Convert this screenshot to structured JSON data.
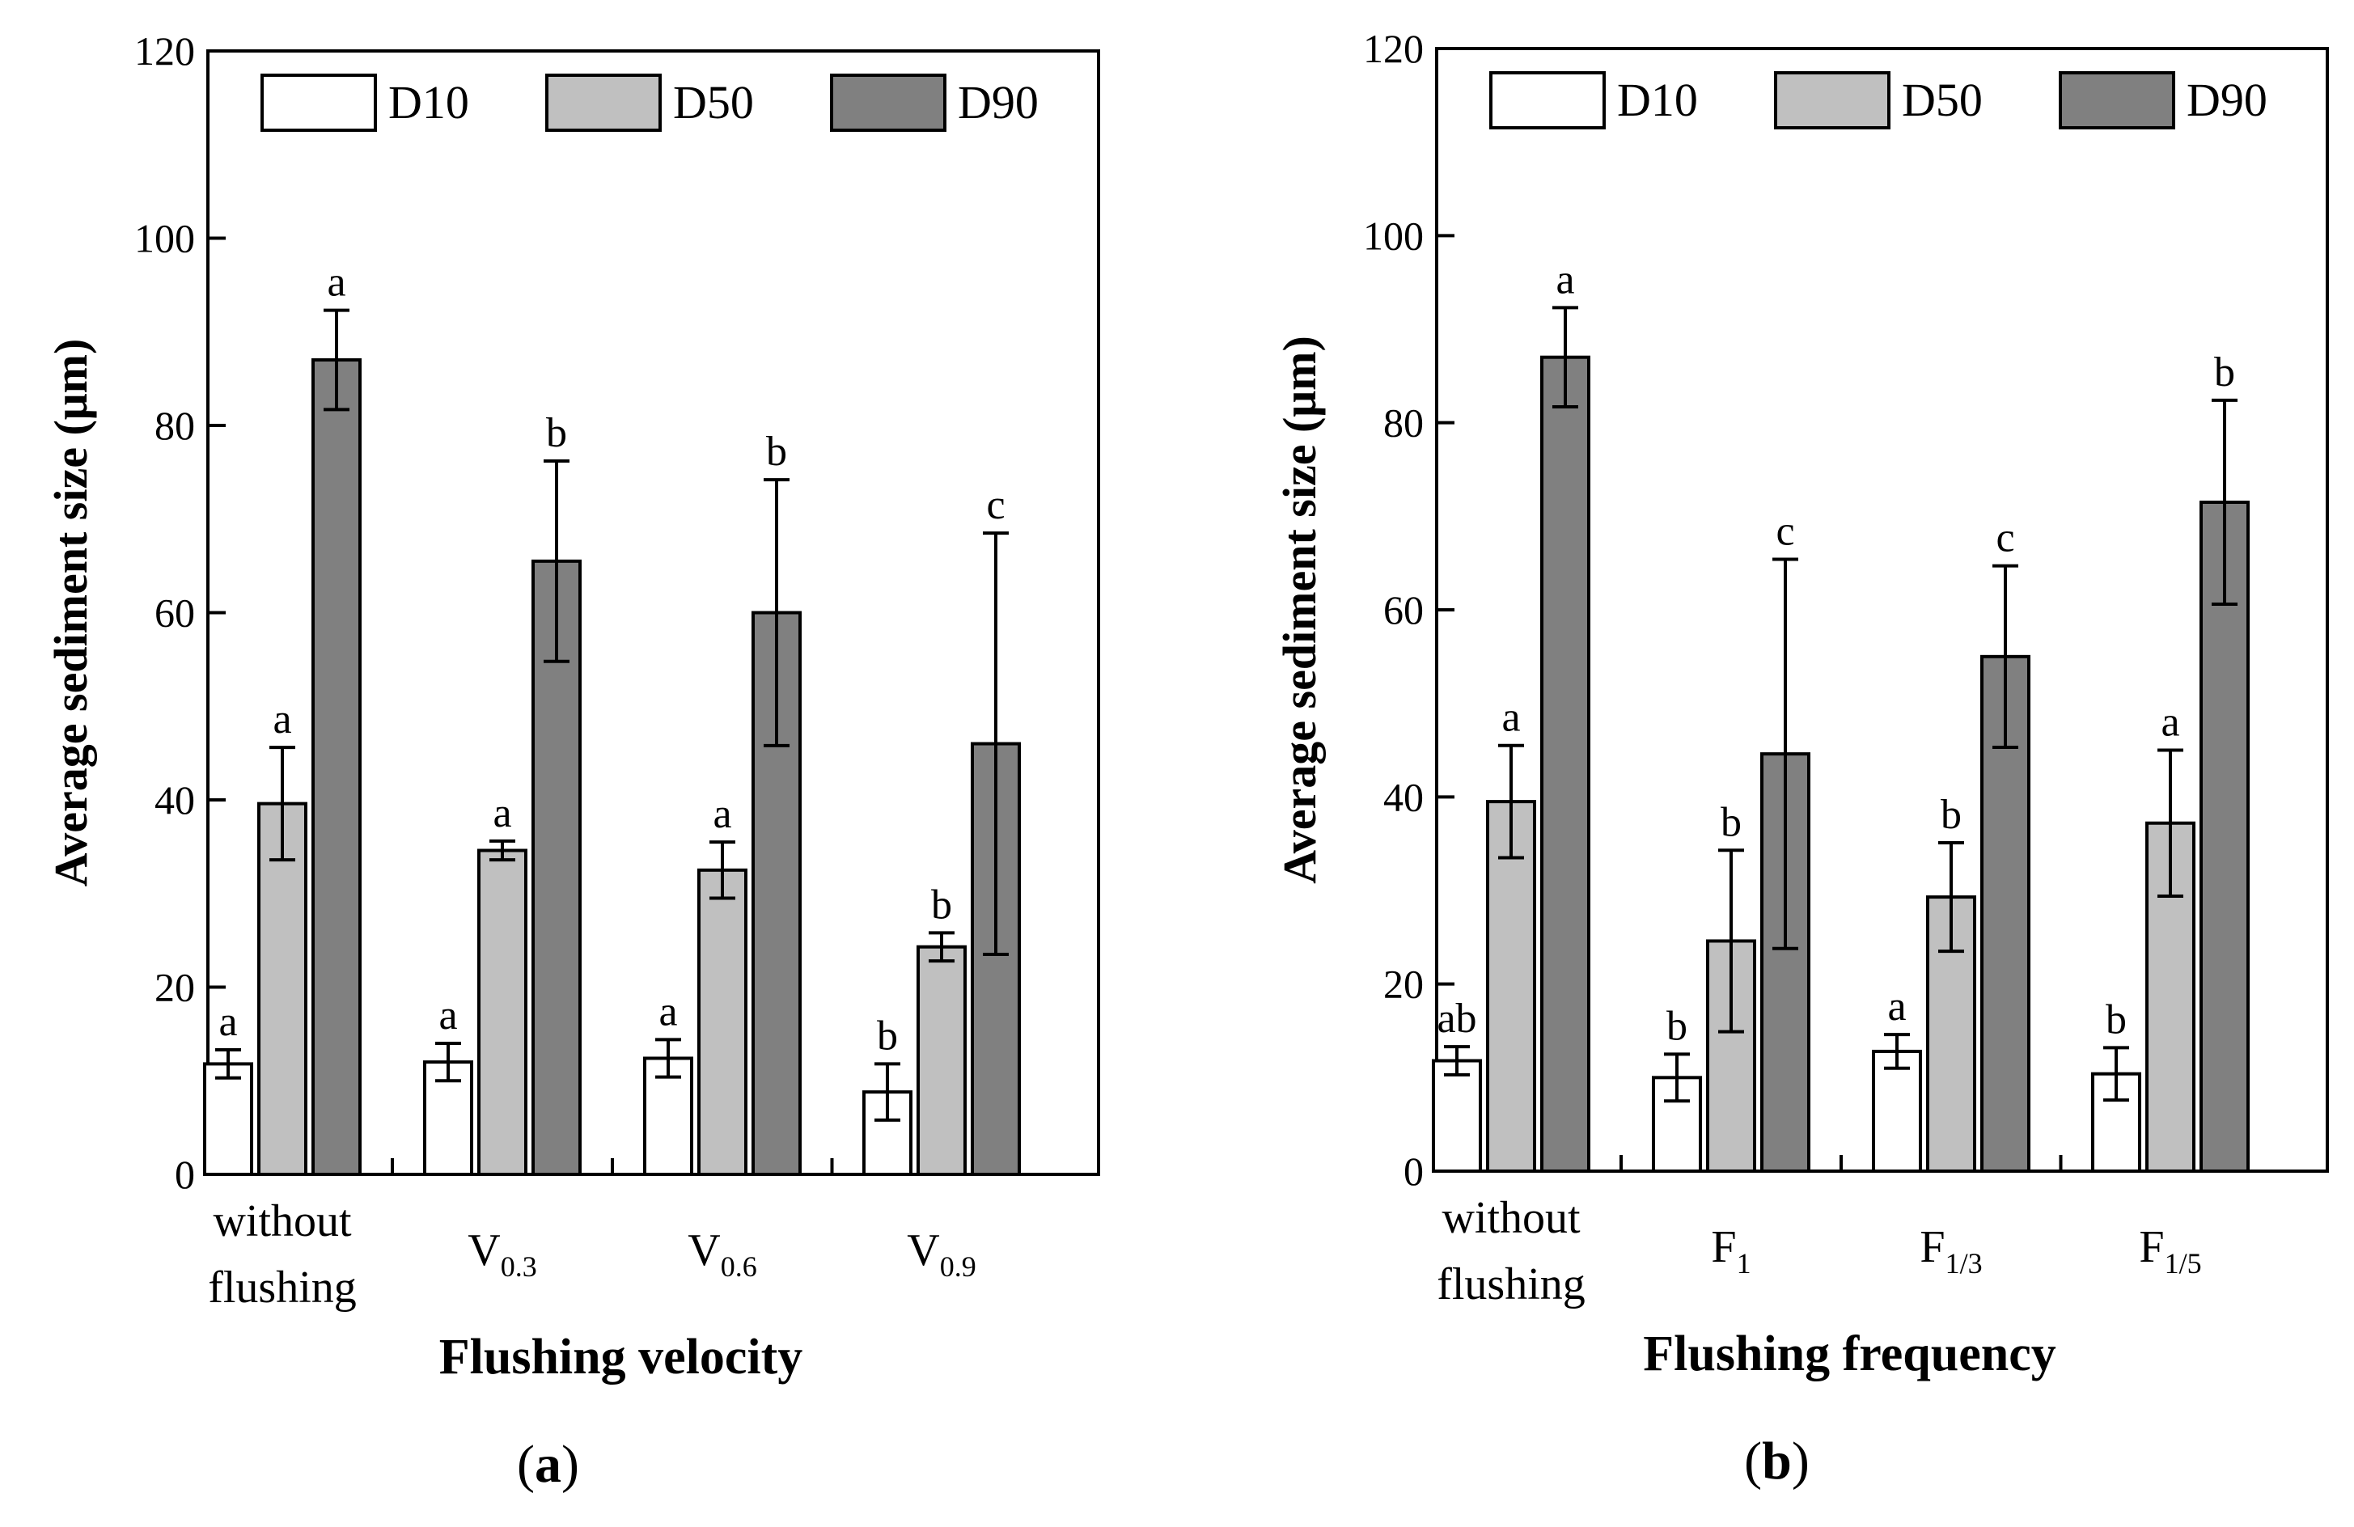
{
  "colors": {
    "D10": "#ffffff",
    "D50": "#c0c0c0",
    "D90": "#808080",
    "axis": "#000000"
  },
  "chart_data": [
    {
      "type": "bar",
      "panel_label": "(a)",
      "panel_letter": "a",
      "xlabel": "Flushing velocity",
      "ylabel": "Average sediment size (μm)",
      "ylim": [
        0,
        120
      ],
      "yticks": [
        0,
        20,
        40,
        60,
        80,
        100,
        120
      ],
      "legend": [
        "D10",
        "D50",
        "D90"
      ],
      "legend_position": "top",
      "categories": [
        {
          "lines": [
            "without",
            "flushing"
          ]
        },
        {
          "base": "V",
          "sub": "0.3"
        },
        {
          "base": "V",
          "sub": "0.6"
        },
        {
          "base": "V",
          "sub": "0.9"
        }
      ],
      "series": [
        {
          "name": "D10",
          "values": [
            11.8,
            12.0,
            12.4,
            8.8
          ],
          "errors": [
            1.5,
            2.0,
            2.0,
            3.0
          ],
          "labels": [
            "a",
            "a",
            "a",
            "b"
          ]
        },
        {
          "name": "D50",
          "values": [
            39.6,
            34.6,
            32.5,
            24.3
          ],
          "errors": [
            6.0,
            1.0,
            3.0,
            1.5
          ],
          "labels": [
            "a",
            "a",
            "a",
            "b"
          ]
        },
        {
          "name": "D90",
          "values": [
            87.0,
            65.5,
            60.0,
            46.0
          ],
          "errors": [
            5.3,
            10.7,
            14.2,
            22.5
          ],
          "labels": [
            "a",
            "b",
            "b",
            "c"
          ]
        }
      ]
    },
    {
      "type": "bar",
      "panel_label": "(b)",
      "panel_letter": "b",
      "xlabel": "Flushing frequency",
      "ylabel": "Average sediment size (μm)",
      "ylim": [
        0,
        120
      ],
      "yticks": [
        0,
        20,
        40,
        60,
        80,
        100,
        120
      ],
      "legend": [
        "D10",
        "D50",
        "D90"
      ],
      "legend_position": "top",
      "categories": [
        {
          "lines": [
            "without",
            "flushing"
          ]
        },
        {
          "base": "F",
          "sub": "1"
        },
        {
          "base": "F",
          "sub": "1/3"
        },
        {
          "base": "F",
          "sub": "1/5"
        }
      ],
      "series": [
        {
          "name": "D10",
          "values": [
            11.8,
            10.0,
            12.8,
            10.4
          ],
          "errors": [
            1.5,
            2.5,
            1.8,
            2.8
          ],
          "labels": [
            "ab",
            "b",
            "a",
            "b"
          ]
        },
        {
          "name": "D50",
          "values": [
            39.5,
            24.6,
            29.3,
            37.2
          ],
          "errors": [
            6.0,
            9.7,
            5.8,
            7.8
          ],
          "labels": [
            "a",
            "b",
            "b",
            "a"
          ]
        },
        {
          "name": "D90",
          "values": [
            87.0,
            44.6,
            55.0,
            71.5
          ],
          "errors": [
            5.3,
            20.8,
            9.7,
            10.9
          ],
          "labels": [
            "a",
            "c",
            "c",
            "b"
          ]
        }
      ]
    }
  ]
}
